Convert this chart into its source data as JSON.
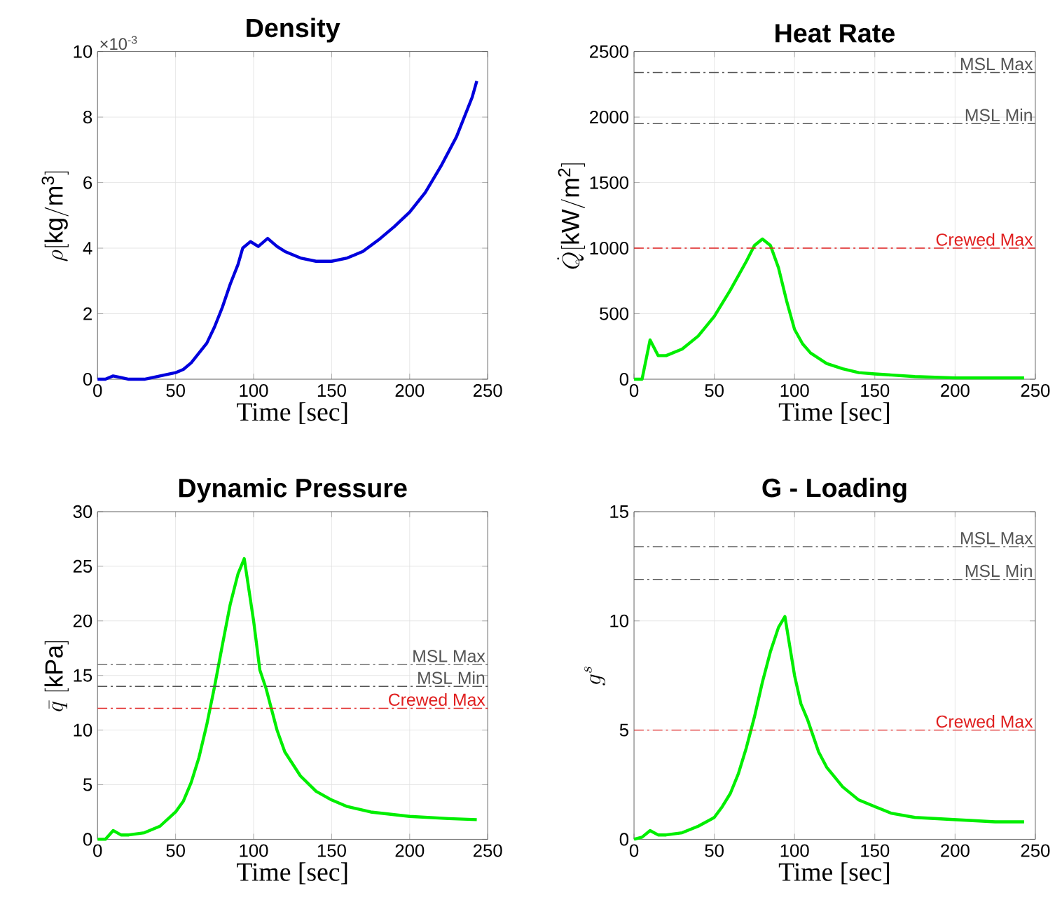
{
  "chart_data": [
    {
      "type": "line",
      "title": "Density",
      "xlabel": "Time [sec]",
      "ylabel": "\\rho[\\mathrm{kg/m^3}]",
      "annotations": [
        "×10$^{-3}$"
      ],
      "grid": true,
      "xlim": [
        0,
        250
      ],
      "xticks": [
        0,
        50,
        100,
        150,
        200,
        250
      ],
      "ylim": [
        0,
        10
      ],
      "yticks": [
        0,
        2,
        4,
        6,
        8,
        10
      ],
      "x": [
        0,
        5,
        10,
        15,
        20,
        30,
        40,
        50,
        55,
        60,
        65,
        70,
        75,
        80,
        85,
        90,
        93,
        98,
        103,
        109,
        115,
        120,
        130,
        140,
        150,
        160,
        170,
        180,
        190,
        200,
        210,
        220,
        230,
        240,
        243
      ],
      "series": [
        {
          "color": "#0000dd",
          "values": [
            0,
            0,
            0.1,
            0.05,
            0,
            0,
            0.1,
            0.2,
            0.3,
            0.5,
            0.8,
            1.1,
            1.6,
            2.2,
            2.9,
            3.5,
            4.0,
            4.2,
            4.05,
            4.3,
            4.05,
            3.9,
            3.7,
            3.6,
            3.6,
            3.7,
            3.9,
            4.25,
            4.65,
            5.1,
            5.7,
            6.5,
            7.4,
            8.6,
            9.1
          ]
        }
      ]
    },
    {
      "type": "line",
      "title": "Heat Rate",
      "xlabel": "Time [sec]",
      "ylabel": "\\dot{Q}[\\mathrm{kW/m^2}]",
      "grid": true,
      "xlim": [
        0,
        250
      ],
      "xticks": [
        0,
        50,
        100,
        150,
        200,
        250
      ],
      "ylim": [
        0,
        2500
      ],
      "yticks": [
        0,
        500,
        1000,
        1500,
        2000,
        2500
      ],
      "x": [
        0,
        5,
        10,
        15,
        20,
        30,
        40,
        50,
        60,
        70,
        75,
        80,
        85,
        90,
        95,
        100,
        105,
        110,
        120,
        130,
        140,
        150,
        175,
        200,
        243
      ],
      "series": [
        {
          "color": "#00ee00",
          "values": [
            0,
            0,
            300,
            180,
            180,
            230,
            330,
            480,
            680,
            900,
            1020,
            1070,
            1020,
            850,
            600,
            380,
            270,
            200,
            120,
            80,
            50,
            40,
            20,
            10,
            10
          ]
        }
      ],
      "ref_lines": [
        {
          "axis": "y",
          "value": 2340,
          "label": "MSL Max",
          "color": "#555555",
          "line_style": "dashdot"
        },
        {
          "axis": "y",
          "value": 1950,
          "label": "MSL Min",
          "color": "#555555",
          "line_style": "dashdot"
        },
        {
          "axis": "y",
          "value": 1000,
          "label": "Crewed Max",
          "color": "#e02020",
          "line_style": "dashdot"
        }
      ]
    },
    {
      "type": "line",
      "title": "Dynamic Pressure",
      "xlabel": "Time [sec]",
      "ylabel": "\\bar{q}\\ [\\mathrm{kPa}]",
      "grid": true,
      "xlim": [
        0,
        250
      ],
      "xticks": [
        0,
        50,
        100,
        150,
        200,
        250
      ],
      "ylim": [
        0,
        30
      ],
      "yticks": [
        0,
        5,
        10,
        15,
        20,
        25,
        30
      ],
      "x": [
        0,
        5,
        10,
        15,
        20,
        30,
        40,
        50,
        55,
        60,
        65,
        70,
        75,
        80,
        85,
        90,
        94,
        100,
        104,
        108,
        115,
        120,
        130,
        140,
        150,
        160,
        175,
        200,
        225,
        243
      ],
      "series": [
        {
          "color": "#00ee00",
          "values": [
            0,
            0,
            0.8,
            0.4,
            0.4,
            0.6,
            1.2,
            2.5,
            3.5,
            5.2,
            7.5,
            10.5,
            14,
            17.8,
            21.5,
            24.3,
            25.7,
            20,
            15.5,
            13.8,
            10,
            8,
            5.8,
            4.4,
            3.6,
            3.0,
            2.5,
            2.1,
            1.9,
            1.8
          ]
        }
      ],
      "ref_lines": [
        {
          "axis": "y",
          "value": 16,
          "label": "MSL Max",
          "color": "#555555",
          "line_style": "dashdot"
        },
        {
          "axis": "y",
          "value": 14,
          "label": "MSL Min",
          "color": "#555555",
          "line_style": "dashdot"
        },
        {
          "axis": "y",
          "value": 12,
          "label": "Crewed Max",
          "color": "#e02020",
          "line_style": "dashdot"
        }
      ]
    },
    {
      "type": "line",
      "title": "G - Loading",
      "xlabel": "Time [sec]",
      "ylabel": "g^s",
      "grid": true,
      "xlim": [
        0,
        250
      ],
      "xticks": [
        0,
        50,
        100,
        150,
        200,
        250
      ],
      "ylim": [
        0,
        15
      ],
      "yticks": [
        0,
        5,
        10,
        15
      ],
      "x": [
        0,
        5,
        10,
        15,
        20,
        30,
        40,
        50,
        55,
        60,
        65,
        70,
        75,
        80,
        85,
        90,
        94,
        100,
        104,
        108,
        115,
        120,
        130,
        140,
        150,
        160,
        175,
        200,
        225,
        243
      ],
      "series": [
        {
          "color": "#00ee00",
          "values": [
            0,
            0.1,
            0.4,
            0.2,
            0.2,
            0.3,
            0.6,
            1.0,
            1.5,
            2.1,
            3.0,
            4.2,
            5.6,
            7.2,
            8.6,
            9.7,
            10.2,
            7.5,
            6.2,
            5.5,
            4.0,
            3.3,
            2.4,
            1.8,
            1.5,
            1.2,
            1.0,
            0.9,
            0.8,
            0.8
          ]
        }
      ],
      "ref_lines": [
        {
          "axis": "y",
          "value": 13.4,
          "label": "MSL Max",
          "color": "#555555",
          "line_style": "dashdot"
        },
        {
          "axis": "y",
          "value": 11.9,
          "label": "MSL Min",
          "color": "#555555",
          "line_style": "dashdot"
        },
        {
          "axis": "y",
          "value": 5,
          "label": "Crewed Max",
          "color": "#e02020",
          "line_style": "dashdot"
        }
      ]
    }
  ]
}
